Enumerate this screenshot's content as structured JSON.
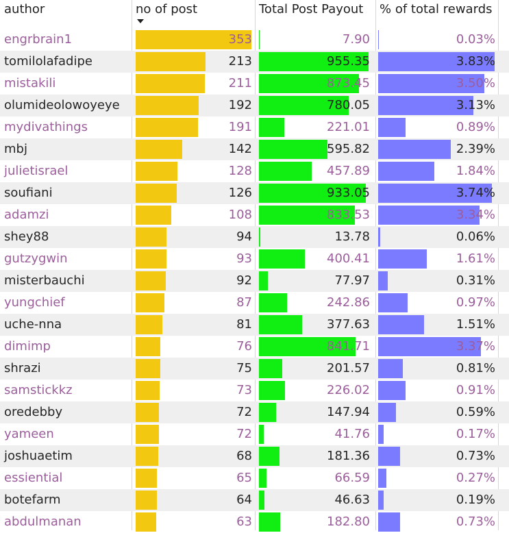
{
  "headers": {
    "author": "author",
    "posts": "no of post",
    "payout": "Total Post Payout",
    "pct": "% of total rewards"
  },
  "colors": {
    "posts_bar": "#f2c811",
    "payout_bar": "#11ee11",
    "pct_bar": "#7b7bff",
    "link_text": "#9b5e9b"
  },
  "rows": [
    {
      "author": "engrbrain1",
      "posts": "353",
      "payout": "7.90",
      "pct": "0.03%"
    },
    {
      "author": "tomilolafadipe",
      "posts": "213",
      "payout": "955.35",
      "pct": "3.83%"
    },
    {
      "author": "mistakili",
      "posts": "211",
      "payout": "873.45",
      "pct": "3.50%"
    },
    {
      "author": "olumideolowoyeye",
      "posts": "192",
      "payout": "780.05",
      "pct": "3.13%"
    },
    {
      "author": "mydivathings",
      "posts": "191",
      "payout": "221.01",
      "pct": "0.89%"
    },
    {
      "author": "mbj",
      "posts": "142",
      "payout": "595.82",
      "pct": "2.39%"
    },
    {
      "author": "julietisrael",
      "posts": "128",
      "payout": "457.89",
      "pct": "1.84%"
    },
    {
      "author": "soufiani",
      "posts": "126",
      "payout": "933.05",
      "pct": "3.74%"
    },
    {
      "author": "adamzi",
      "posts": "108",
      "payout": "833.53",
      "pct": "3.34%"
    },
    {
      "author": "shey88",
      "posts": "94",
      "payout": "13.78",
      "pct": "0.06%"
    },
    {
      "author": "gutzygwin",
      "posts": "93",
      "payout": "400.41",
      "pct": "1.61%"
    },
    {
      "author": "misterbauchi",
      "posts": "92",
      "payout": "77.97",
      "pct": "0.31%"
    },
    {
      "author": "yungchief",
      "posts": "87",
      "payout": "242.86",
      "pct": "0.97%"
    },
    {
      "author": "uche-nna",
      "posts": "81",
      "payout": "377.63",
      "pct": "1.51%"
    },
    {
      "author": "dimimp",
      "posts": "76",
      "payout": "841.71",
      "pct": "3.37%"
    },
    {
      "author": "shrazi",
      "posts": "75",
      "payout": "201.57",
      "pct": "0.81%"
    },
    {
      "author": "samstickkz",
      "posts": "73",
      "payout": "226.02",
      "pct": "0.91%"
    },
    {
      "author": "oredebby",
      "posts": "72",
      "payout": "147.94",
      "pct": "0.59%"
    },
    {
      "author": "yameen",
      "posts": "72",
      "payout": "41.76",
      "pct": "0.17%"
    },
    {
      "author": "joshuaetim",
      "posts": "68",
      "payout": "181.36",
      "pct": "0.73%"
    },
    {
      "author": "essiential",
      "posts": "65",
      "payout": "66.59",
      "pct": "0.27%"
    },
    {
      "author": "botefarm",
      "posts": "64",
      "payout": "46.63",
      "pct": "0.19%"
    },
    {
      "author": "abdulmanan",
      "posts": "63",
      "payout": "182.80",
      "pct": "0.73%"
    }
  ]
}
